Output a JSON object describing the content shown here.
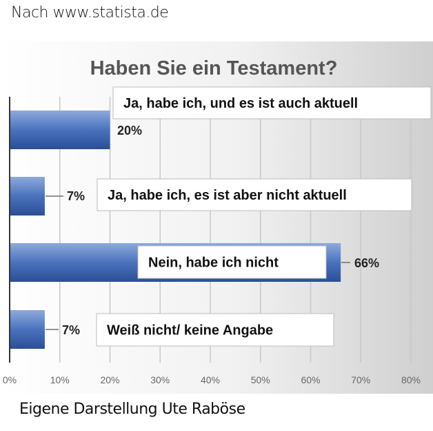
{
  "header": {
    "source": "Nach www.statista.de"
  },
  "footer": {
    "credit": "Eigene Darstellung Ute Raböse"
  },
  "chart_data": {
    "type": "bar",
    "orientation": "horizontal",
    "title": "Haben Sie ein Testament?",
    "categories": [
      "Ja, habe ich, und es ist auch aktuell",
      "Ja, habe ich, es ist aber nicht aktuell",
      "Nein, habe ich nicht",
      "Weiß nicht/ keine Angabe"
    ],
    "values": [
      20,
      7,
      66,
      7
    ],
    "data_labels": [
      "20%",
      "7%",
      "66%",
      "7%"
    ],
    "xlim": [
      0,
      80
    ],
    "x_ticks": [
      "0%",
      "10%",
      "20%",
      "30%",
      "40%",
      "50%",
      "60%",
      "70%",
      "80%"
    ],
    "grid": true,
    "bar_color": "#3f66b0",
    "legend": "none"
  }
}
